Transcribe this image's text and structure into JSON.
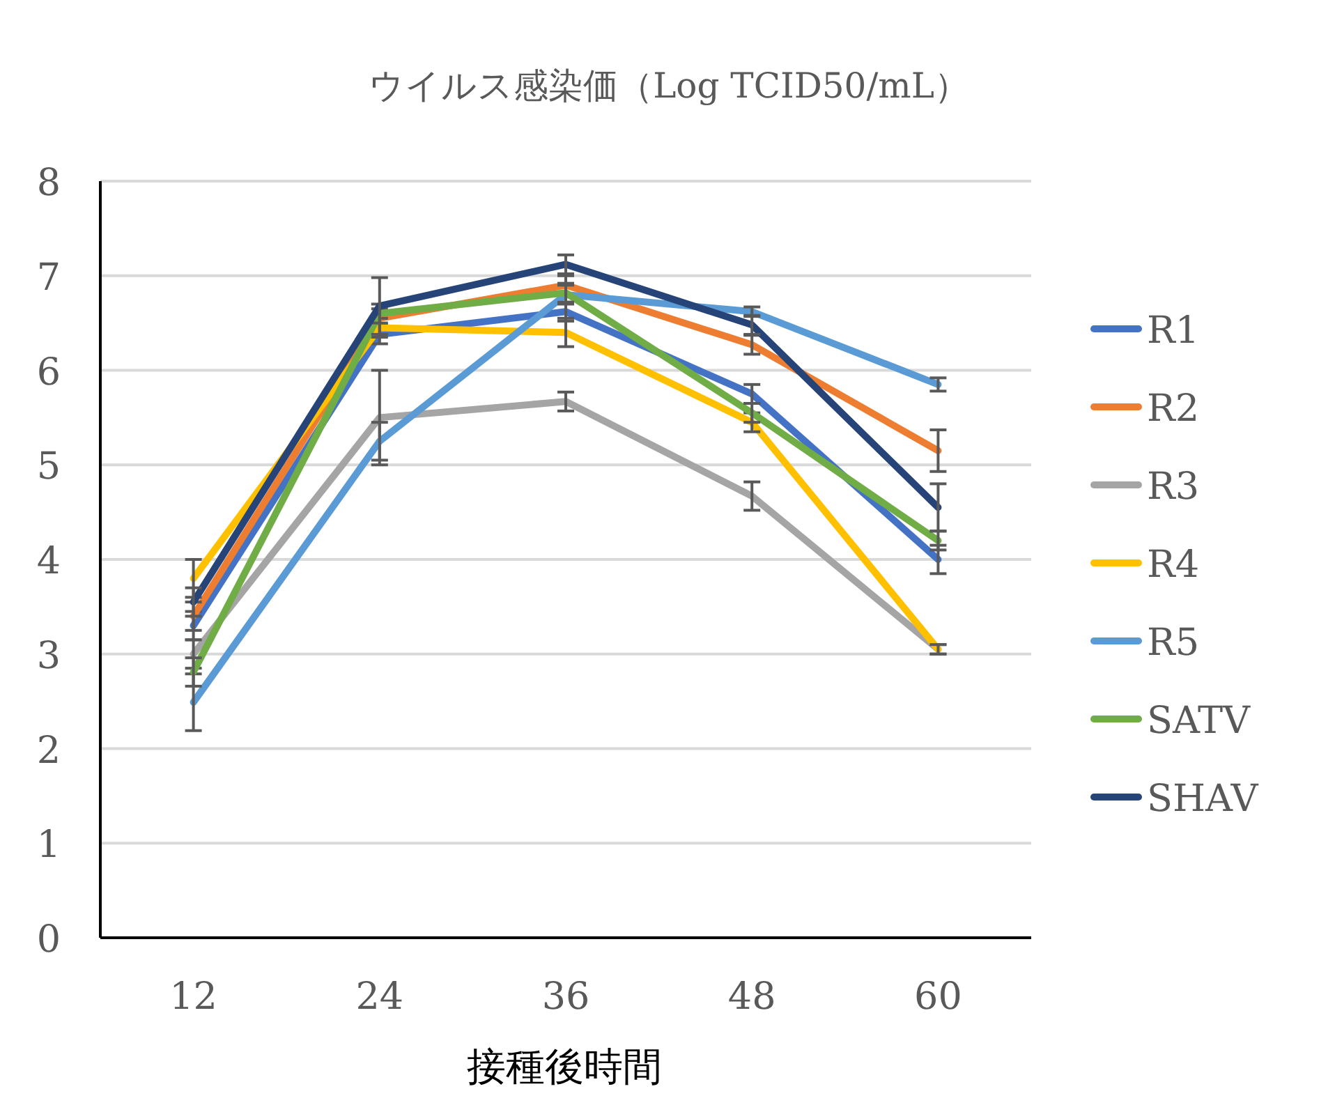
{
  "chart_data": {
    "type": "line",
    "title": "ウイルス感染価（Log TCID50/mL）",
    "xlabel": "接種後時間",
    "categories": [
      "12",
      "24",
      "36",
      "48",
      "60"
    ],
    "ylim": [
      0,
      8
    ],
    "yticks": [
      0,
      1,
      2,
      3,
      4,
      5,
      6,
      7,
      8
    ],
    "grid": "y",
    "legend": "right",
    "marker": "none",
    "line_style": "solid",
    "series": [
      {
        "name": "R1",
        "color": "#4472c4",
        "values": [
          3.3,
          6.38,
          6.62,
          5.75,
          4.0
        ],
        "errors": [
          0.15,
          0.1,
          0.1,
          0.1,
          0.15
        ]
      },
      {
        "name": "R2",
        "color": "#ed7d31",
        "values": [
          3.4,
          6.55,
          6.9,
          6.27,
          5.15
        ],
        "errors": [
          0.15,
          0.1,
          0.1,
          0.1,
          0.22
        ]
      },
      {
        "name": "R3",
        "color": "#a5a5a5",
        "values": [
          3.0,
          5.5,
          5.67,
          4.67,
          3.05
        ],
        "errors": [
          0.15,
          0.5,
          0.1,
          0.15,
          0.05
        ]
      },
      {
        "name": "R4",
        "color": "#ffc000",
        "values": [
          3.8,
          6.45,
          6.4,
          5.45,
          3.05
        ],
        "errors": [
          0.2,
          0.1,
          0.15,
          0.1,
          0.05
        ]
      },
      {
        "name": "R5",
        "color": "#5b9bd5",
        "values": [
          2.49,
          5.25,
          6.8,
          6.62,
          5.85
        ],
        "errors": [
          0.3,
          0.2,
          0.1,
          0.05,
          0.07
        ]
      },
      {
        "name": "SATV",
        "color": "#70ad47",
        "values": [
          2.81,
          6.6,
          6.82,
          5.55,
          4.2
        ],
        "errors": [
          0.15,
          0.1,
          0.1,
          0.1,
          0.1
        ]
      },
      {
        "name": "SHAV",
        "color": "#264478",
        "values": [
          3.55,
          6.68,
          7.12,
          6.48,
          4.55
        ],
        "errors": [
          0.15,
          0.3,
          0.1,
          0.1,
          0.25
        ]
      }
    ]
  }
}
